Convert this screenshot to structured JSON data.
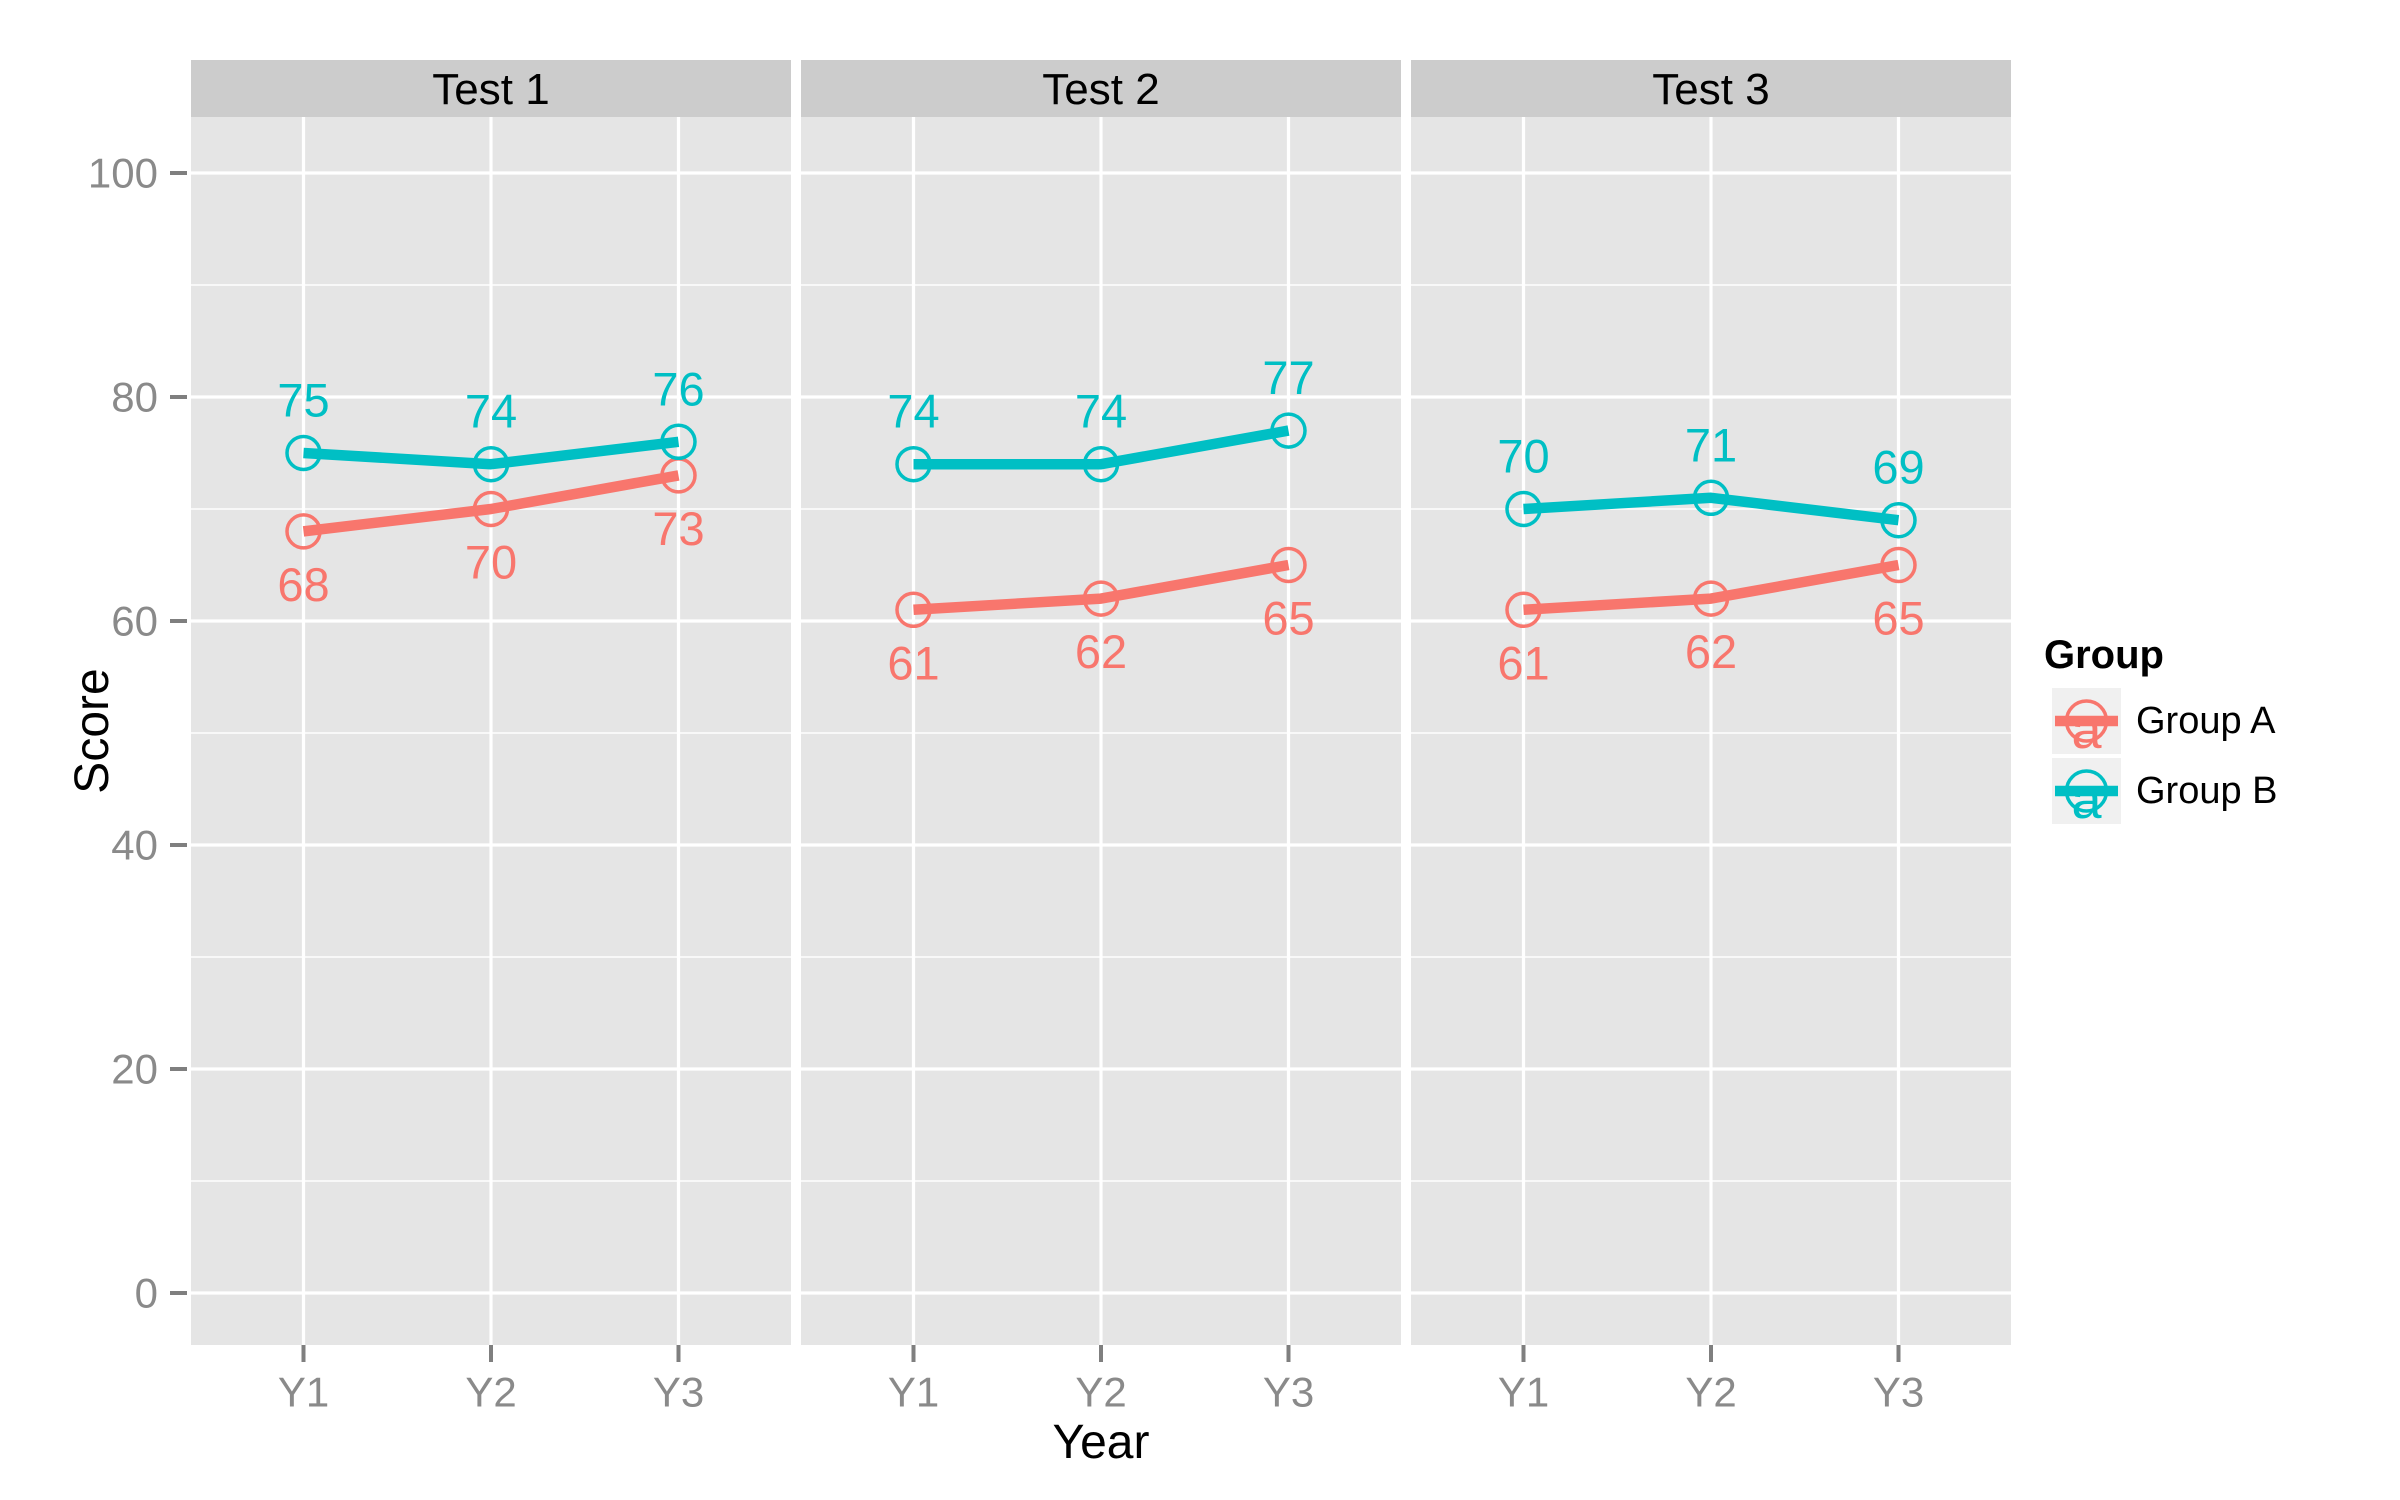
{
  "chart_data": {
    "type": "line",
    "title": "",
    "xlabel": "Year",
    "ylabel": "Score",
    "categories": [
      "Y1",
      "Y2",
      "Y3"
    ],
    "y_ticks": [
      0,
      20,
      40,
      60,
      80,
      100
    ],
    "y_minor_ticks": [
      10,
      30,
      50,
      70,
      90
    ],
    "ylim": [
      0,
      100
    ],
    "grid": "on",
    "point_marker": "open-circle",
    "point_labels_shown": true,
    "facets": [
      {
        "label": "Test 1",
        "series": [
          {
            "name": "Group A",
            "values": [
              68,
              70,
              73
            ]
          },
          {
            "name": "Group B",
            "values": [
              75,
              74,
              76
            ]
          }
        ]
      },
      {
        "label": "Test 2",
        "series": [
          {
            "name": "Group A",
            "values": [
              61,
              62,
              65
            ]
          },
          {
            "name": "Group B",
            "values": [
              74,
              74,
              77
            ]
          }
        ]
      },
      {
        "label": "Test 3",
        "series": [
          {
            "name": "Group A",
            "values": [
              61,
              62,
              65
            ]
          },
          {
            "name": "Group B",
            "values": [
              70,
              71,
              69
            ]
          }
        ]
      }
    ],
    "series_styles": [
      {
        "name": "Group A",
        "color": "#F8766D",
        "point_label_position": "below"
      },
      {
        "name": "Group B",
        "color": "#00BFC4",
        "point_label_position": "above"
      }
    ],
    "legend": {
      "title": "Group",
      "position": "right",
      "key_glyph_char": "a",
      "entries": [
        {
          "label": "Group A",
          "color": "#F8766D"
        },
        {
          "label": "Group B",
          "color": "#00BFC4"
        }
      ]
    }
  },
  "colors": {
    "background": "#FFFFFF",
    "panel_bg": "#E5E5E5",
    "strip_bg": "#CCCCCC",
    "gridline": "#FFFFFF",
    "axis_text": "#8A8A8A",
    "tick_mark": "#7F7F7F",
    "strip_text": "#000000",
    "title_text": "#000000",
    "legend_key_bg": "#F0F0F0",
    "series_a": "#F8766D",
    "series_b": "#00BFC4"
  }
}
